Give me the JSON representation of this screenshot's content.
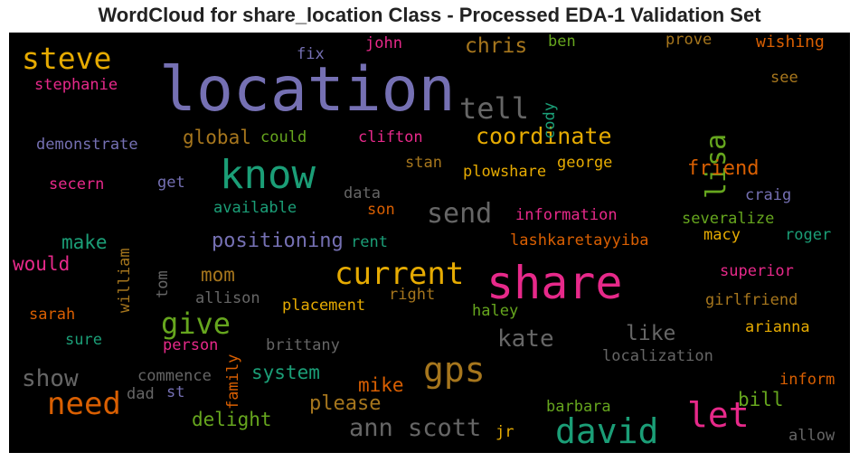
{
  "chart_data": {
    "type": "wordcloud",
    "title": "WordCloud for share_location Class - Processed EDA-1 Validation Set",
    "background": "#000000",
    "words": [
      {
        "text": "location",
        "color": "#7570b3"
      },
      {
        "text": "share",
        "color": "#e7298a"
      },
      {
        "text": "know",
        "color": "#1b9e77"
      },
      {
        "text": "david",
        "color": "#1b9e77"
      },
      {
        "text": "let",
        "color": "#e7298a"
      },
      {
        "text": "gps",
        "color": "#a6761d"
      },
      {
        "text": "current",
        "color": "#e6ab02"
      },
      {
        "text": "steve",
        "color": "#e6ab02"
      },
      {
        "text": "need",
        "color": "#d95f02"
      },
      {
        "text": "give",
        "color": "#66a61e"
      },
      {
        "text": "lisa",
        "color": "#66a61e"
      },
      {
        "text": "tell",
        "color": "#666666"
      },
      {
        "text": "send",
        "color": "#666666"
      },
      {
        "text": "ann scott",
        "color": "#666666"
      },
      {
        "text": "coordinate",
        "color": "#e6ab02"
      },
      {
        "text": "kate",
        "color": "#666666"
      },
      {
        "text": "show",
        "color": "#666666"
      },
      {
        "text": "positioning",
        "color": "#7570b3"
      },
      {
        "text": "chris",
        "color": "#a6761d"
      },
      {
        "text": "friend",
        "color": "#d95f02"
      },
      {
        "text": "please",
        "color": "#a6761d"
      },
      {
        "text": "system",
        "color": "#1b9e77"
      },
      {
        "text": "delight",
        "color": "#66a61e"
      },
      {
        "text": "mike",
        "color": "#d95f02"
      },
      {
        "text": "like",
        "color": "#666666"
      },
      {
        "text": "bill",
        "color": "#66a61e"
      },
      {
        "text": "global",
        "color": "#a6761d"
      },
      {
        "text": "make",
        "color": "#1b9e77"
      },
      {
        "text": "would",
        "color": "#e7298a"
      },
      {
        "text": "mom",
        "color": "#a6761d"
      },
      {
        "text": "stephanie",
        "color": "#e7298a"
      },
      {
        "text": "demonstrate",
        "color": "#7570b3"
      },
      {
        "text": "secern",
        "color": "#e7298a"
      },
      {
        "text": "fix",
        "color": "#7570b3"
      },
      {
        "text": "john",
        "color": "#e7298a"
      },
      {
        "text": "ben",
        "color": "#66a61e"
      },
      {
        "text": "prove",
        "color": "#a6761d"
      },
      {
        "text": "wishing",
        "color": "#d95f02"
      },
      {
        "text": "cody",
        "color": "#1b9e77"
      },
      {
        "text": "see",
        "color": "#a6761d"
      },
      {
        "text": "could",
        "color": "#66a61e"
      },
      {
        "text": "clifton",
        "color": "#e7298a"
      },
      {
        "text": "stan",
        "color": "#a6761d"
      },
      {
        "text": "george",
        "color": "#e6ab02"
      },
      {
        "text": "plowshare",
        "color": "#e6ab02"
      },
      {
        "text": "get",
        "color": "#7570b3"
      },
      {
        "text": "data",
        "color": "#666666"
      },
      {
        "text": "craig",
        "color": "#7570b3"
      },
      {
        "text": "available",
        "color": "#1b9e77"
      },
      {
        "text": "son",
        "color": "#d95f02"
      },
      {
        "text": "information",
        "color": "#e7298a"
      },
      {
        "text": "severalize",
        "color": "#66a61e"
      },
      {
        "text": "william",
        "color": "#a6761d"
      },
      {
        "text": "rent",
        "color": "#1b9e77"
      },
      {
        "text": "lashkaretayyiba",
        "color": "#d95f02"
      },
      {
        "text": "macy",
        "color": "#e6ab02"
      },
      {
        "text": "roger",
        "color": "#1b9e77"
      },
      {
        "text": "superior",
        "color": "#e7298a"
      },
      {
        "text": "tom",
        "color": "#666666"
      },
      {
        "text": "allison",
        "color": "#666666"
      },
      {
        "text": "right",
        "color": "#a6761d"
      },
      {
        "text": "placement",
        "color": "#e6ab02"
      },
      {
        "text": "girlfriend",
        "color": "#a6761d"
      },
      {
        "text": "sarah",
        "color": "#d95f02"
      },
      {
        "text": "haley",
        "color": "#66a61e"
      },
      {
        "text": "arianna",
        "color": "#e6ab02"
      },
      {
        "text": "sure",
        "color": "#1b9e77"
      },
      {
        "text": "person",
        "color": "#e7298a"
      },
      {
        "text": "brittany",
        "color": "#666666"
      },
      {
        "text": "family",
        "color": "#d95f02"
      },
      {
        "text": "localization",
        "color": "#666666"
      },
      {
        "text": "commence",
        "color": "#666666"
      },
      {
        "text": "dad",
        "color": "#666666"
      },
      {
        "text": "st",
        "color": "#7570b3"
      },
      {
        "text": "inform",
        "color": "#d95f02"
      },
      {
        "text": "barbara",
        "color": "#66a61e"
      },
      {
        "text": "jr",
        "color": "#e6ab02"
      },
      {
        "text": "allow",
        "color": "#666666"
      }
    ]
  }
}
